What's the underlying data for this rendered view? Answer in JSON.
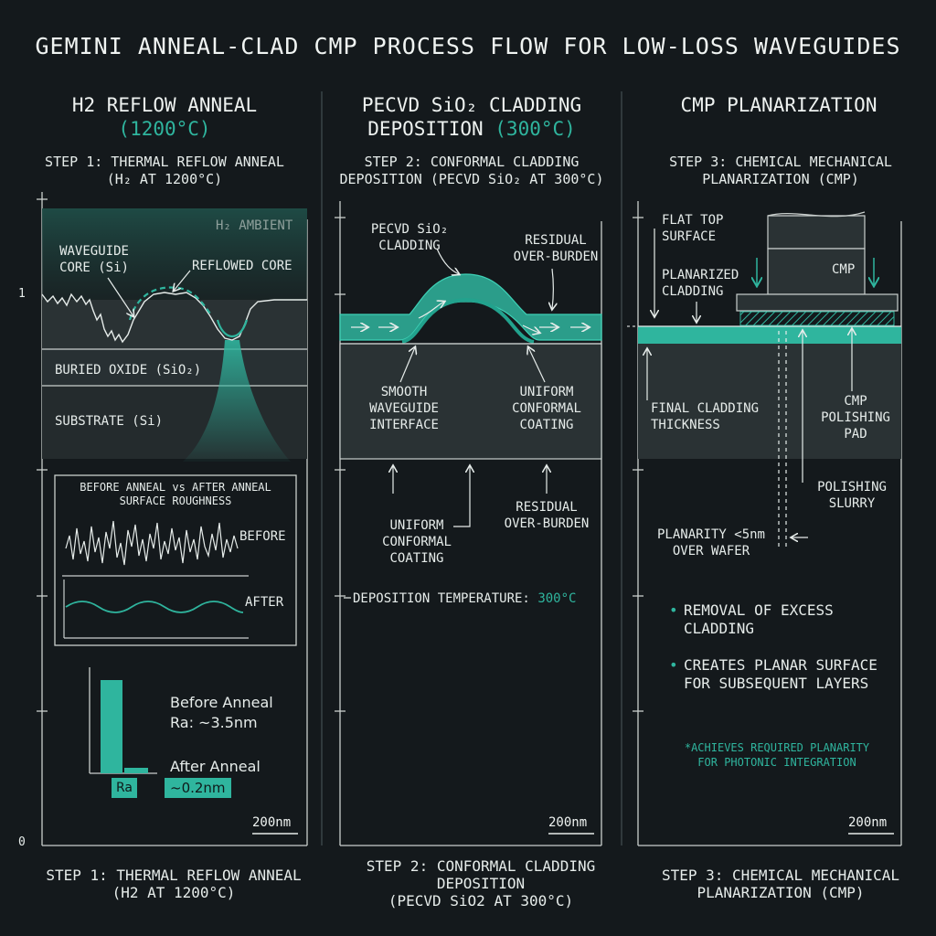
{
  "title": "GEMINI ANNEAL-CLAD CMP PROCESS FLOW FOR LOW-LOSS WAVEGUIDES",
  "panels": [
    {
      "header_main": "H2 REFLOW ANNEAL",
      "header_accent": "(1200°C)",
      "step_top": [
        "STEP 1: THERMAL REFLOW ANNEAL",
        "(H₂ AT 1200°C)"
      ],
      "ambient_label": "H₂ AMBIENT",
      "waveguide_core_label": [
        "WAVEGUIDE",
        "CORE (Si)"
      ],
      "reflowed_core_label": "REFLOWED CORE",
      "buried_oxide_label": "BURIED OXIDE (SiO₂)",
      "substrate_label": "SUBSTRATE (Si)",
      "roughness_title": [
        "BEFORE ANNEAL vs AFTER ANNEAL",
        "SURFACE ROUGHNESS"
      ],
      "before_label": "BEFORE",
      "after_label": "AFTER",
      "before_anneal_label": "Before Anneal",
      "before_ra": "Ra: ~3.5nm",
      "after_anneal_label": "After Anneal",
      "ra_tag": "Ra",
      "after_ra": "~0.2nm",
      "scale": "200nm",
      "step_bottom": [
        "STEP 1: THERMAL REFLOW ANNEAL",
        "(H2 AT 1200°C)"
      ],
      "axis_top": "1",
      "axis_bottom": "0"
    },
    {
      "header_main": [
        "PECVD SiO₂ CLADDING",
        "DEPOSITION"
      ],
      "header_accent": "(300°C)",
      "step_top": [
        "STEP 2: CONFORMAL CLADDING",
        "DEPOSITION (PECVD SiO₂ AT 300°C)"
      ],
      "pecvd_label": [
        "PECVD SiO₂",
        "CLADDING"
      ],
      "residual_top_label": [
        "RESIDUAL",
        "OVER-BURDEN"
      ],
      "smooth_label": [
        "SMOOTH",
        "WAVEGUIDE",
        "INTERFACE"
      ],
      "uniform_label_top": [
        "UNIFORM",
        "CONFORMAL",
        "COATING"
      ],
      "uniform_label_bottom": [
        "UNIFORM",
        "CONFORMAL",
        "COATING"
      ],
      "residual_bottom_label": [
        "RESIDUAL",
        "OVER-BURDEN"
      ],
      "dep_temp_label": "DEPOSITION TEMPERATURE:",
      "dep_temp_value": "300°C",
      "scale": "200nm",
      "step_bottom": [
        "STEP 2: CONFORMAL CLADDING",
        "DEPOSITION",
        "(PECVD SiO2 AT 300°C)"
      ]
    },
    {
      "header_main": "CMP PLANARIZATION",
      "step_top": [
        "STEP 3: CHEMICAL MECHANICAL",
        "PLANARIZATION (CMP)"
      ],
      "flat_top_label": [
        "FLAT TOP",
        "SURFACE"
      ],
      "planarized_label": [
        "PLANARIZED",
        "CLADDING"
      ],
      "cmp_head_label": "CMP",
      "final_thickness_label": [
        "FINAL CLADDING",
        "THICKNESS"
      ],
      "pad_label": [
        "CMP",
        "POLISHING",
        "PAD"
      ],
      "slurry_label": [
        "POLISHING",
        "SLURRY"
      ],
      "planarity_label": [
        "PLANARITY <5nm",
        "OVER WAFER"
      ],
      "bullets": [
        [
          "REMOVAL OF EXCESS",
          "CLADDING"
        ],
        [
          "CREATES PLANAR SURFACE",
          "FOR SUBSEQUENT LAYERS"
        ]
      ],
      "note": [
        "*ACHIEVES REQUIRED PLANARITY",
        "FOR PHOTONIC INTEGRATION"
      ],
      "scale": "200nm",
      "step_bottom": [
        "STEP 3: CHEMICAL MECHANICAL",
        "PLANARIZATION (CMP)"
      ]
    }
  ],
  "colors": {
    "background": "#14191c",
    "accent_teal": "#2fb59e",
    "line": "#c9cfcd",
    "layer_dark": "#2a3234"
  }
}
